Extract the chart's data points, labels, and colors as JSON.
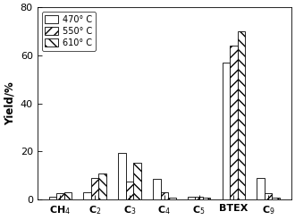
{
  "categories": [
    "CH$_4$",
    "C$_2$",
    "C$_3$",
    "C$_4$",
    "C$_5$",
    "BTEX",
    "C$_9$"
  ],
  "series": {
    "470° C": [
      1.2,
      3.0,
      19.5,
      8.5,
      1.2,
      57.0,
      9.0
    ],
    "550° C": [
      2.5,
      9.0,
      7.5,
      3.0,
      1.0,
      64.0,
      2.5
    ],
    "610° C": [
      3.2,
      11.0,
      15.5,
      0.8,
      0.8,
      70.0,
      0.8
    ]
  },
  "hatches": [
    "",
    "///",
    "\\\\\\"
  ],
  "ylabel": "Yield/%",
  "ylim": [
    0,
    80
  ],
  "yticks": [
    0,
    20,
    40,
    60,
    80
  ],
  "legend_labels": [
    "470° C",
    "550° C",
    "610° C"
  ],
  "bar_width": 0.22,
  "background_color": "#ffffff",
  "edge_color": "#000000"
}
